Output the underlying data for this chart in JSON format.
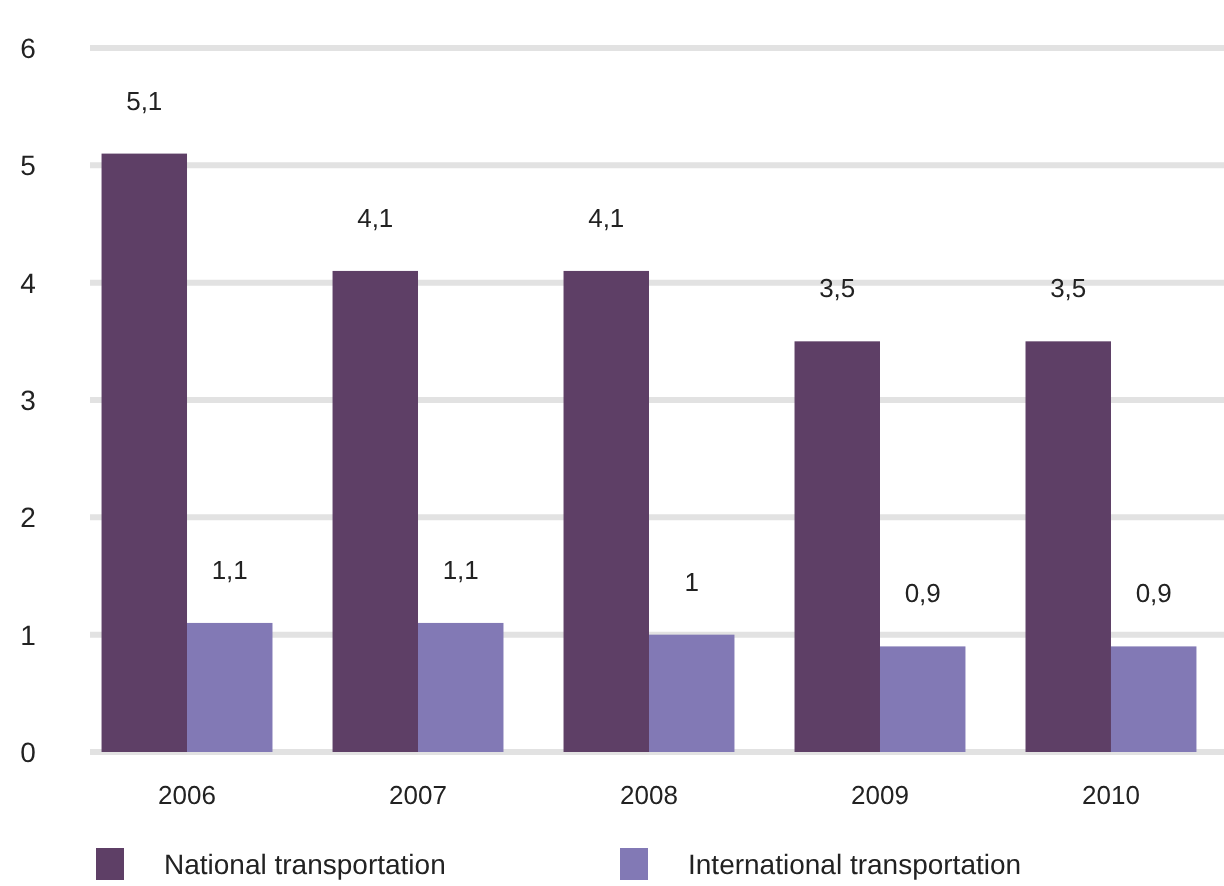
{
  "chart_data": {
    "type": "bar",
    "categories": [
      "2006",
      "2007",
      "2008",
      "2009",
      "2010"
    ],
    "series": [
      {
        "name": "National transportation",
        "color": "#5e3f66",
        "values": [
          5.1,
          4.1,
          4.1,
          3.5,
          3.5
        ],
        "value_labels": [
          "5,1",
          "4,1",
          "4,1",
          "3,5",
          "3,5"
        ]
      },
      {
        "name": "International transportation",
        "color": "#8279b5",
        "values": [
          1.1,
          1.1,
          1,
          0.9,
          0.9
        ],
        "value_labels": [
          "1,1",
          "1,1",
          "1",
          "0,9",
          "0,9"
        ]
      }
    ],
    "ylim": [
      0,
      6
    ],
    "yticks": [
      0,
      1,
      2,
      3,
      4,
      5,
      6
    ],
    "grid": "y",
    "legend": "bottom"
  }
}
